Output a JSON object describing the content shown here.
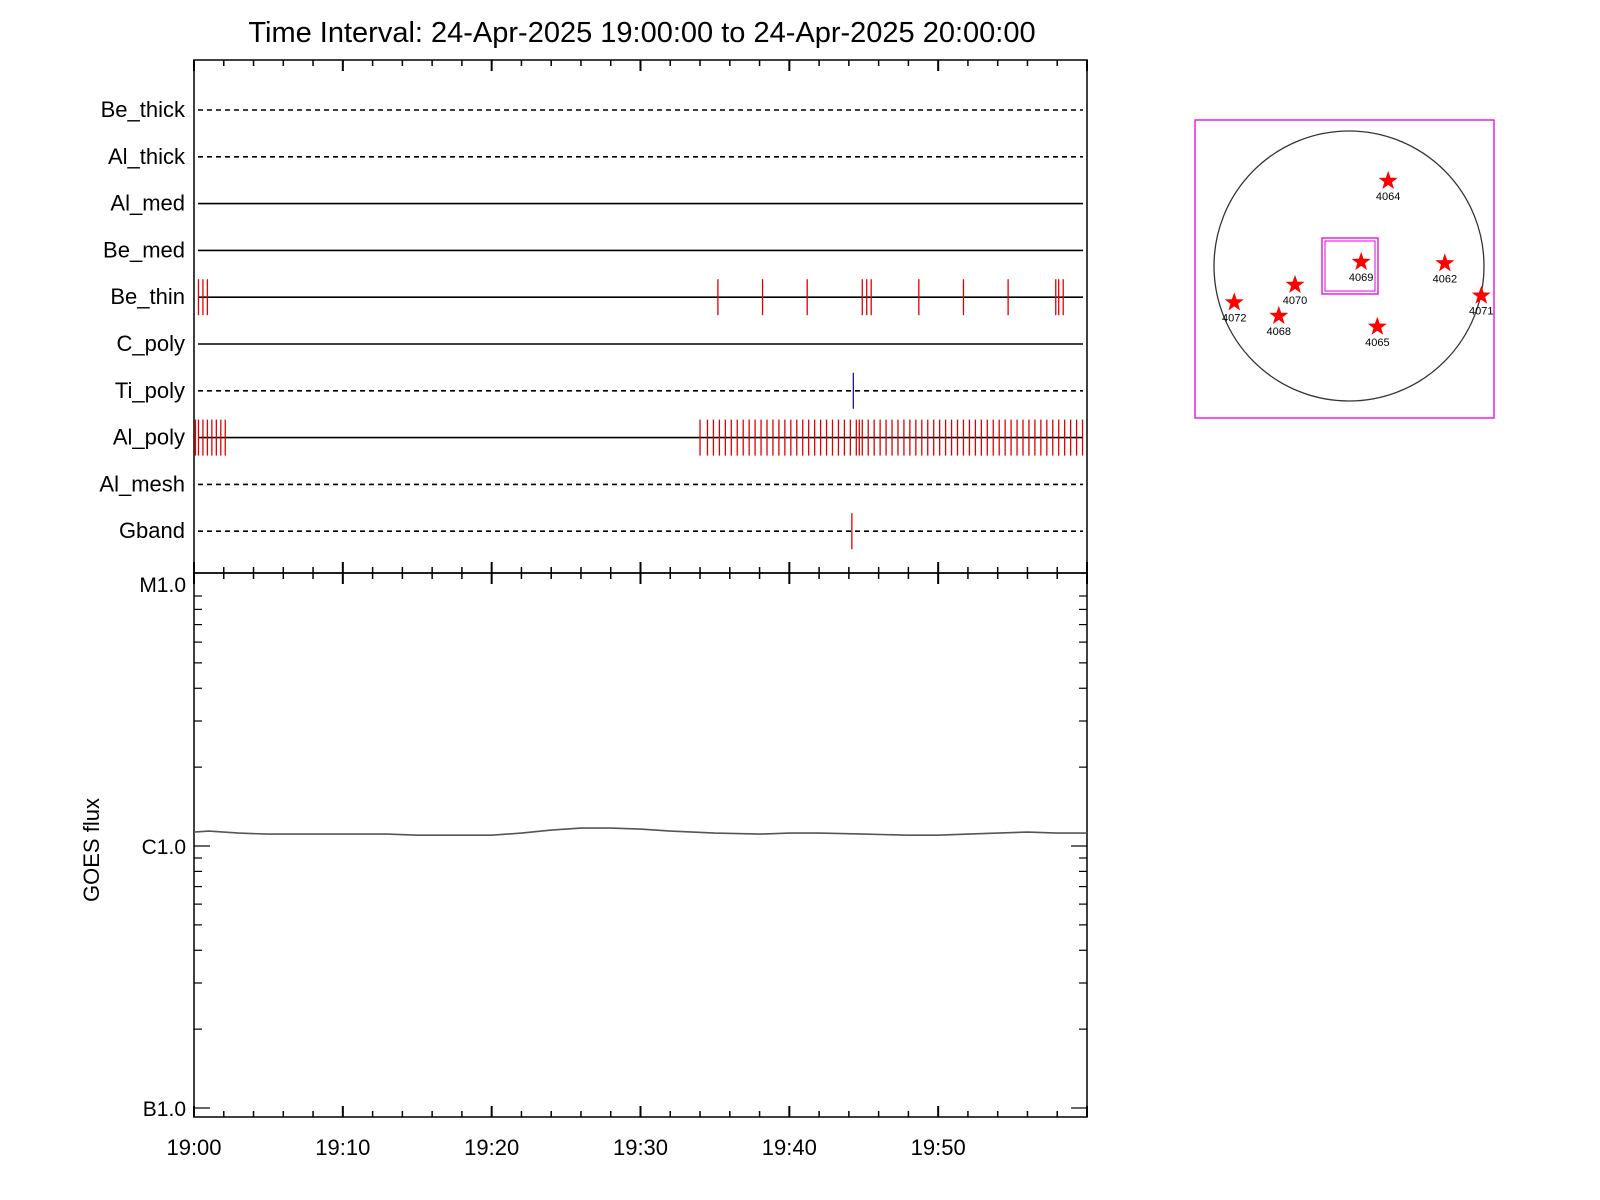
{
  "chart_data": [
    {
      "type": "timeline",
      "title": "Time Interval: 24-Apr-2025 19:00:00 to 24-Apr-2025 20:00:00",
      "x_unit": "minutes after 19:00",
      "xlim": [
        0,
        60
      ],
      "x_tick_labels": [
        "19:00",
        "19:10",
        "19:20",
        "19:30",
        "19:40",
        "19:50"
      ],
      "filters": [
        {
          "name": "Be_thick",
          "style": "dashed",
          "events": []
        },
        {
          "name": "Al_thick",
          "style": "dashed",
          "events": []
        },
        {
          "name": "Al_med",
          "style": "solid",
          "events": []
        },
        {
          "name": "Be_med",
          "style": "solid",
          "events": []
        },
        {
          "name": "Be_thin",
          "style": "solid",
          "event_color": "#e00000",
          "events": [
            0.3,
            0.6,
            0.9,
            35.2,
            38.2,
            41.2,
            44.9,
            45.2,
            45.5,
            48.7,
            51.7,
            54.7,
            57.9,
            58.1,
            58.4
          ]
        },
        {
          "name": "C_poly",
          "style": "solid",
          "events": []
        },
        {
          "name": "Ti_poly",
          "style": "dashed",
          "event_color": "#1a1a8c",
          "events": [
            44.3
          ]
        },
        {
          "name": "Al_poly",
          "style": "solid",
          "event_color": "#e00000",
          "events": [
            0.1,
            0.3,
            0.6,
            0.9,
            1.2,
            1.5,
            1.8,
            2.1,
            34.0,
            34.5,
            34.9,
            35.3,
            35.7,
            36.1,
            36.5,
            36.9,
            37.3,
            37.7,
            38.1,
            38.5,
            38.9,
            39.3,
            39.7,
            40.1,
            40.5,
            40.9,
            41.3,
            41.7,
            42.1,
            42.5,
            42.9,
            43.3,
            43.7,
            44.1,
            44.5,
            44.7,
            44.9,
            45.3,
            45.7,
            46.1,
            46.5,
            46.9,
            47.3,
            47.7,
            48.1,
            48.5,
            48.9,
            49.3,
            49.7,
            50.1,
            50.5,
            50.9,
            51.3,
            51.7,
            52.1,
            52.5,
            52.9,
            53.3,
            53.7,
            54.1,
            54.5,
            54.9,
            55.3,
            55.7,
            56.1,
            56.5,
            56.9,
            57.3,
            57.7,
            58.1,
            58.5,
            58.9,
            59.3,
            59.7
          ]
        },
        {
          "name": "Al_mesh",
          "style": "dashed",
          "events": []
        },
        {
          "name": "Gband",
          "style": "dashed",
          "event_color": "#e00000",
          "events": [
            44.2
          ]
        }
      ]
    },
    {
      "type": "line",
      "ylabel": "GOES flux",
      "xlim": [
        0,
        60
      ],
      "x_tick_labels": [
        "19:00",
        "19:10",
        "19:20",
        "19:30",
        "19:40",
        "19:50"
      ],
      "y_scale": "log",
      "ylim": [
        1e-07,
        1e-05
      ],
      "y_ticks": [
        {
          "value": 1e-07,
          "label": "B1.0"
        },
        {
          "value": 1e-06,
          "label": "C1.0"
        },
        {
          "value": 1e-05,
          "label": "M1.0"
        }
      ],
      "line_color": "#555555",
      "x": [
        0,
        1,
        3,
        5,
        8,
        10,
        13,
        15,
        18,
        20,
        22,
        24,
        26,
        28,
        30,
        32,
        35,
        38,
        40,
        42,
        45,
        48,
        50,
        52,
        54,
        56,
        58,
        60
      ],
      "y": [
        1.13e-06,
        1.14e-06,
        1.12e-06,
        1.11e-06,
        1.11e-06,
        1.11e-06,
        1.11e-06,
        1.1e-06,
        1.1e-06,
        1.1e-06,
        1.12e-06,
        1.15e-06,
        1.17e-06,
        1.17e-06,
        1.16e-06,
        1.14e-06,
        1.12e-06,
        1.11e-06,
        1.12e-06,
        1.12e-06,
        1.11e-06,
        1.1e-06,
        1.1e-06,
        1.11e-06,
        1.12e-06,
        1.13e-06,
        1.12e-06,
        1.12e-06
      ]
    },
    {
      "type": "scatter",
      "description_free": true,
      "regions": [
        {
          "label": "4064",
          "x": 0.29,
          "y": 0.63
        },
        {
          "label": "4062",
          "x": 0.71,
          "y": 0.02
        },
        {
          "label": "4071",
          "x": 0.98,
          "y": -0.22
        },
        {
          "label": "4069",
          "x": 0.09,
          "y": 0.03
        },
        {
          "label": "4070",
          "x": -0.4,
          "y": -0.14
        },
        {
          "label": "4072",
          "x": -0.85,
          "y": -0.27
        },
        {
          "label": "4068",
          "x": -0.52,
          "y": -0.37
        },
        {
          "label": "4065",
          "x": 0.21,
          "y": -0.45
        }
      ],
      "disk_color": "#333333",
      "frame_color": "#e000e0",
      "marker_color": "#ff0000"
    }
  ]
}
